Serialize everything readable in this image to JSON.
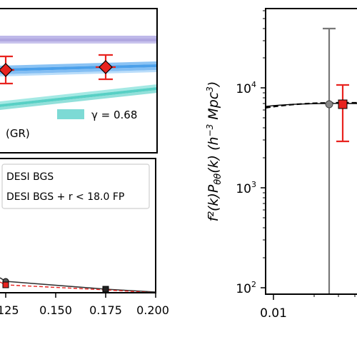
{
  "chart_data": [
    {
      "type": "line",
      "panel": "top-left",
      "title": "",
      "xlabel": "",
      "ylabel": "",
      "bands": [
        {
          "color": "#7b6fd0",
          "y": [
            0.92,
            0.92
          ]
        },
        {
          "color": "#1e88e5",
          "y": [
            0.77,
            0.81
          ]
        },
        {
          "color": "#2ec4b6",
          "y": [
            0.58,
            0.64
          ]
        }
      ],
      "points": [
        {
          "x": 0.125,
          "y": 0.77,
          "yerr": 0.1
        },
        {
          "x": 0.175,
          "y": 0.79,
          "yerr": 0.09
        }
      ],
      "legend": [
        {
          "label": "γ = 0.68",
          "color": "#6fd6d0"
        },
        {
          "label": "(GR)"
        }
      ]
    },
    {
      "type": "line",
      "panel": "bottom-left",
      "title": "",
      "xlabel": "",
      "ylabel": "",
      "xlim": [
        0.1,
        0.2
      ],
      "xticks": [
        "125",
        "0.150",
        "0.175",
        "0.200"
      ],
      "series": [
        {
          "name": "DESI BGS",
          "color": "#333333",
          "style": "solid",
          "x": [
            0.125,
            0.175,
            0.2
          ],
          "y": [
            0.75,
            0.62,
            0.57
          ]
        },
        {
          "name": "DESI BGS + r < 18.0 FP",
          "color": "#e8231f",
          "style": "dashed",
          "x": [
            0.125,
            0.175,
            0.2
          ],
          "y": [
            0.72,
            0.6,
            0.57
          ]
        }
      ],
      "legend_position": "top-right"
    },
    {
      "type": "scatter",
      "panel": "right",
      "title": "",
      "xlabel": "",
      "ylabel": "f²(k)Pθθ(k) (h⁻³ Mpc³)",
      "yscale": "log",
      "ylim": [
        80,
        60000
      ],
      "xscale": "log",
      "xticks": [
        "0.01"
      ],
      "yticks": [
        "10²",
        "10³",
        "10⁴"
      ],
      "points": [
        {
          "name": "grey",
          "color": "#777777",
          "x": 0.05,
          "y": 6700,
          "ylow": 100,
          "yhigh": 38000
        },
        {
          "name": "red",
          "color": "#e8231f",
          "x": 0.055,
          "y": 6800,
          "ylow": 2900,
          "yhigh": 10500
        }
      ],
      "curve_y": 6800
    }
  ]
}
